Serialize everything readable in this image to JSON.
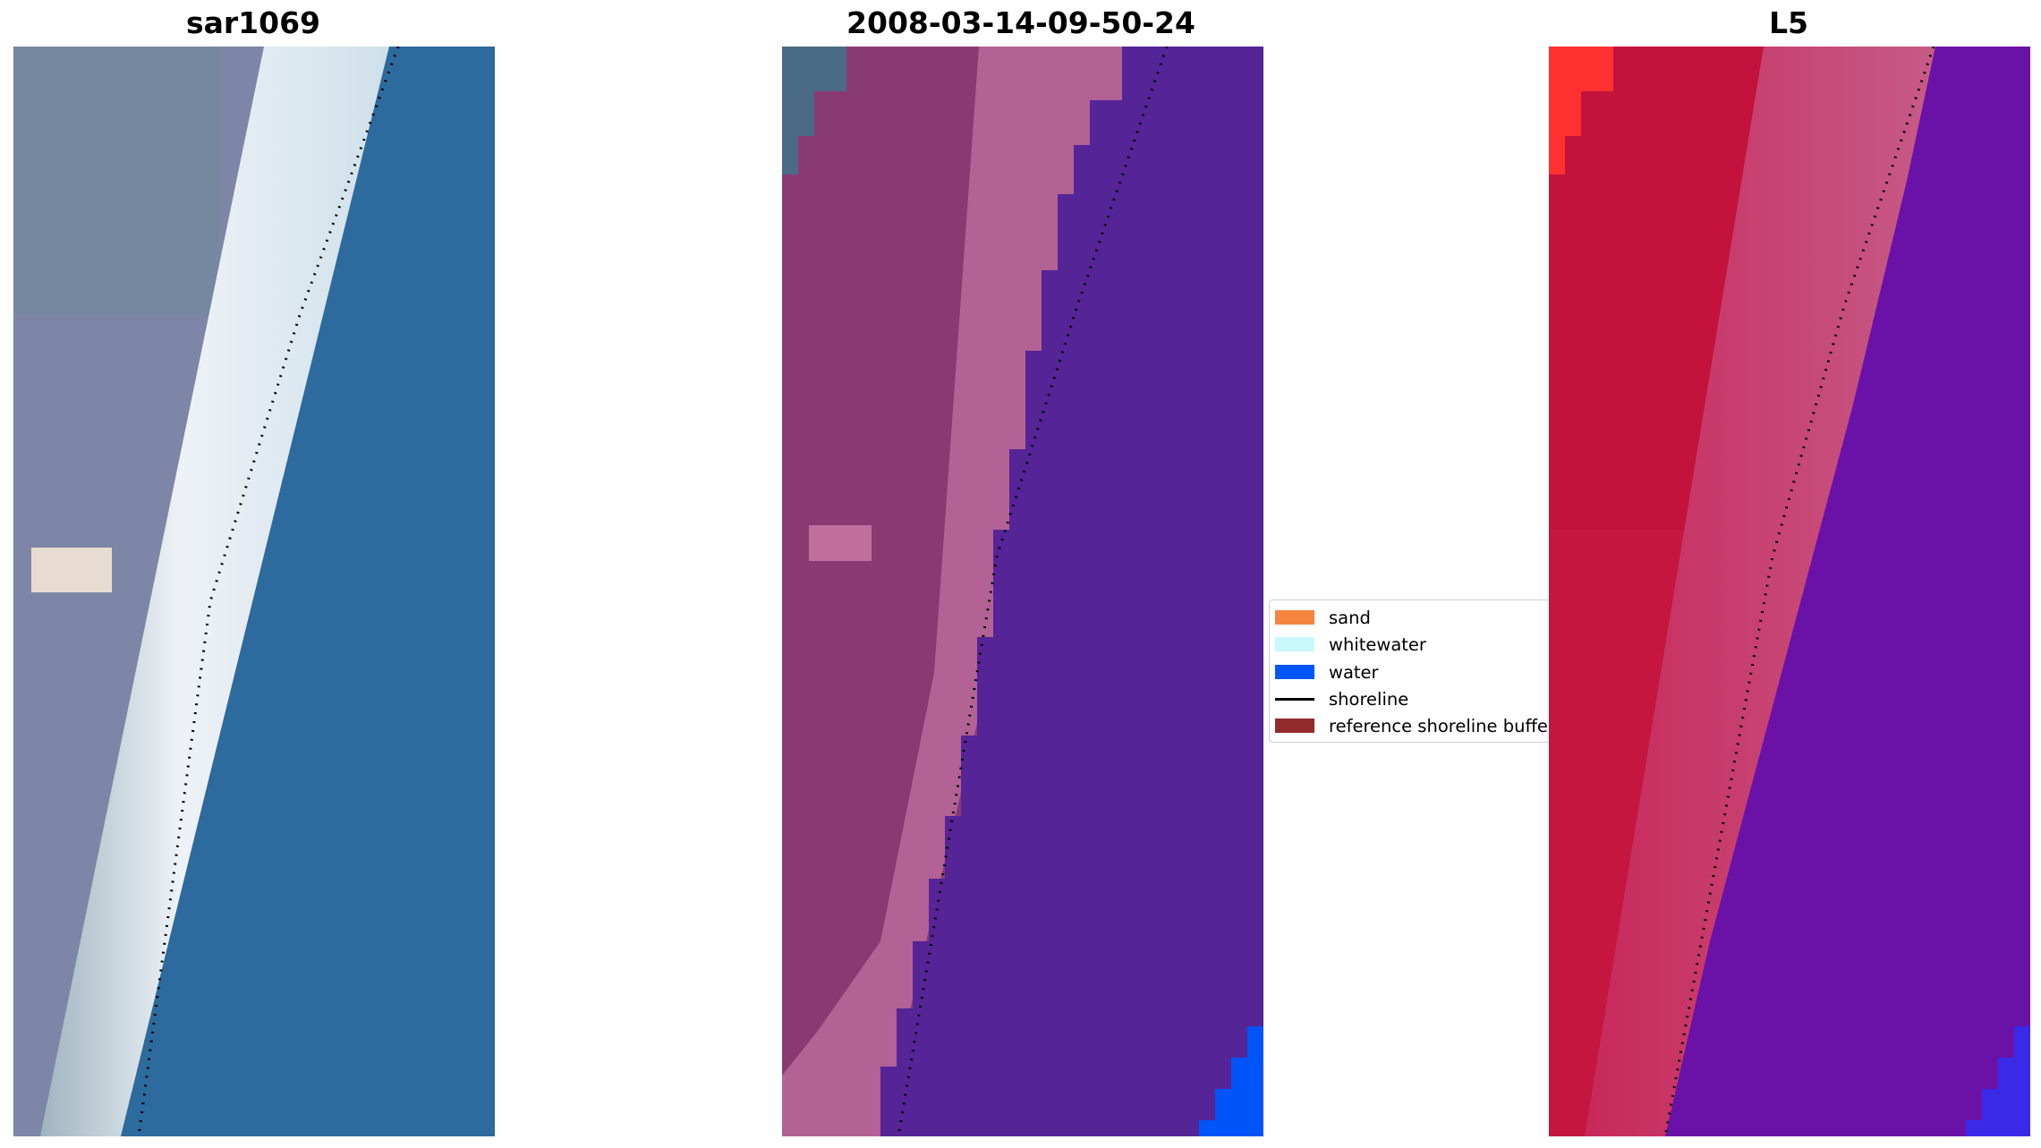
{
  "panels": [
    {
      "title": "sar1069"
    },
    {
      "title": "2008-03-14-09-50-24"
    },
    {
      "title": "L5"
    }
  ],
  "legend": {
    "items": [
      {
        "label": "sand",
        "color": "#f5853f",
        "type": "patch"
      },
      {
        "label": "whitewater",
        "color": "#c8f8fc",
        "type": "patch"
      },
      {
        "label": "water",
        "color": "#0055f8",
        "type": "patch"
      },
      {
        "label": "shoreline",
        "color": "#000000",
        "type": "line"
      },
      {
        "label": "reference shoreline buffer",
        "color": "#922b2b",
        "type": "patch"
      }
    ]
  },
  "colors": {
    "rgb_land": "#7d86a6",
    "rgb_beach": "#e8eef4",
    "rgb_water": "#2d6a9d",
    "class_land": "#8a3a72",
    "class_beach": "#b86a9a",
    "class_water": "#552497",
    "class_water_edge": "#0055f8",
    "class_topleft": "#4a6a86",
    "l5_land": "#c4163f",
    "l5_water": "#6a11a8",
    "l5_corner": "#ff3030"
  }
}
